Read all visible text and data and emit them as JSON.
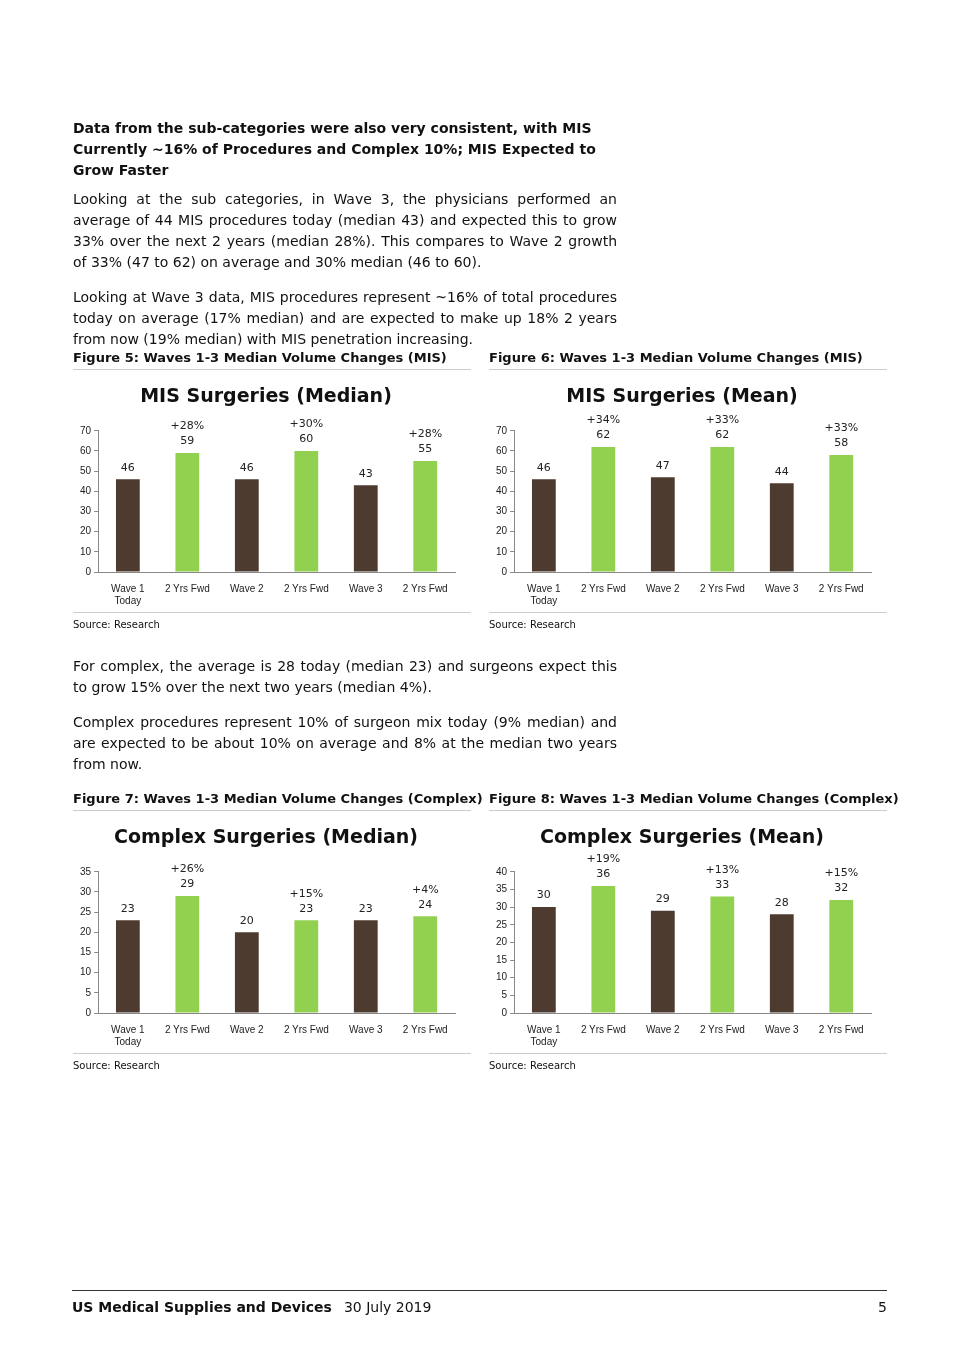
{
  "chart_data": [
    {
      "type": "other",
      "title": "Data from the sub-categories were also very consistent, with MIS Currently ~16% of Procedures and Complex 10%; MIS Expected to Grow Faster",
      "annotations": [
        "Looking at the sub categories, in Wave 3, the physicians performed an average of 44 MIS procedures today (median 43) and expected this to grow 33% over the next 2 years (median 28%).  This compares to Wave 2 growth of 33% (47 to 62) on average and 30% median (46 to 60).",
        "Looking at Wave 3 data, MIS procedures represent ~16% of total procedures today on average (17% median) and are expected to make up 18% 2 years from now (19% median) with MIS penetration increasing."
      ]
    },
    {
      "type": "bar",
      "title": "Figure 5: Waves 1-3 Median Volume Changes (MIS)",
      "subtitle": "MIS Surgeries (Median)",
      "categories": [
        "Wave 1\nToday",
        "2 Yrs Fwd",
        "Wave 2",
        "2 Yrs Fwd",
        "Wave 3",
        "2 Yrs Fwd"
      ],
      "values": [
        46,
        59,
        46,
        60,
        43,
        55
      ],
      "colors": [
        "#4e3b30",
        "#92d050",
        "#4e3b30",
        "#92d050",
        "#4e3b30",
        "#92d050"
      ],
      "value_labels": [
        "46",
        "+28%\n59",
        "46",
        "+30%\n60",
        "43",
        "+28%\n55"
      ],
      "ylim": [
        0,
        70
      ],
      "yticks": [
        0,
        10,
        20,
        30,
        40,
        50,
        60,
        70
      ],
      "legend": false,
      "annotations": [
        "Source: Research"
      ]
    },
    {
      "type": "bar",
      "title": "Figure 6: Waves 1-3 Median Volume Changes (MIS)",
      "subtitle": "MIS Surgeries (Mean)",
      "categories": [
        "Wave 1\nToday",
        "2 Yrs Fwd",
        "Wave 2",
        "2 Yrs Fwd",
        "Wave 3",
        "2 Yrs Fwd"
      ],
      "values": [
        46,
        62,
        47,
        62,
        44,
        58
      ],
      "colors": [
        "#4e3b30",
        "#92d050",
        "#4e3b30",
        "#92d050",
        "#4e3b30",
        "#92d050"
      ],
      "value_labels": [
        "46",
        "+34%\n62",
        "47",
        "+33%\n62",
        "44",
        "+33%\n58"
      ],
      "ylim": [
        0,
        70
      ],
      "yticks": [
        0,
        10,
        20,
        30,
        40,
        50,
        60,
        70
      ],
      "legend": false,
      "annotations": [
        "Source: Research"
      ]
    },
    {
      "type": "other",
      "annotations": [
        "For complex, the average is 28 today (median 23) and surgeons expect this to grow 15% over the next two years (median 4%).",
        "Complex procedures represent 10% of surgeon mix today (9% median) and are expected to be about 10% on average and 8% at the median two years from now."
      ]
    },
    {
      "type": "bar",
      "title": "Figure 7: Waves 1-3 Median Volume Changes (Complex)",
      "subtitle": "Complex Surgeries (Median)",
      "categories": [
        "Wave 1\nToday",
        "2 Yrs Fwd",
        "Wave 2",
        "2 Yrs Fwd",
        "Wave 3",
        "2 Yrs Fwd"
      ],
      "values": [
        23,
        29,
        20,
        23,
        23,
        24
      ],
      "colors": [
        "#4e3b30",
        "#92d050",
        "#4e3b30",
        "#92d050",
        "#4e3b30",
        "#92d050"
      ],
      "value_labels": [
        "23",
        "+26%\n29",
        "20",
        "+15%\n23",
        "23",
        "+4%\n24"
      ],
      "ylim": [
        0,
        35
      ],
      "yticks": [
        0,
        5,
        10,
        15,
        20,
        25,
        30,
        35
      ],
      "legend": false,
      "annotations": [
        "Source: Research"
      ]
    },
    {
      "type": "bar",
      "title": "Figure 8: Waves 1-3 Median Volume Changes (Complex)",
      "subtitle": "Complex Surgeries (Mean)",
      "categories": [
        "Wave 1\nToday",
        "2 Yrs Fwd",
        "Wave 2",
        "2 Yrs Fwd",
        "Wave 3",
        "2 Yrs Fwd"
      ],
      "values": [
        30,
        36,
        29,
        33,
        28,
        32
      ],
      "colors": [
        "#4e3b30",
        "#92d050",
        "#4e3b30",
        "#92d050",
        "#4e3b30",
        "#92d050"
      ],
      "value_labels": [
        "30",
        "+19%\n36",
        "29",
        "+13%\n33",
        "28",
        "+15%\n32"
      ],
      "ylim": [
        0,
        40
      ],
      "yticks": [
        0,
        5,
        10,
        15,
        20,
        25,
        30,
        35,
        40
      ],
      "legend": false,
      "annotations": [
        "Source: Research"
      ]
    },
    {
      "type": "other",
      "title": "US Medical Supplies and Devices",
      "annotations": [
        "30 July 2019",
        "5"
      ]
    }
  ]
}
